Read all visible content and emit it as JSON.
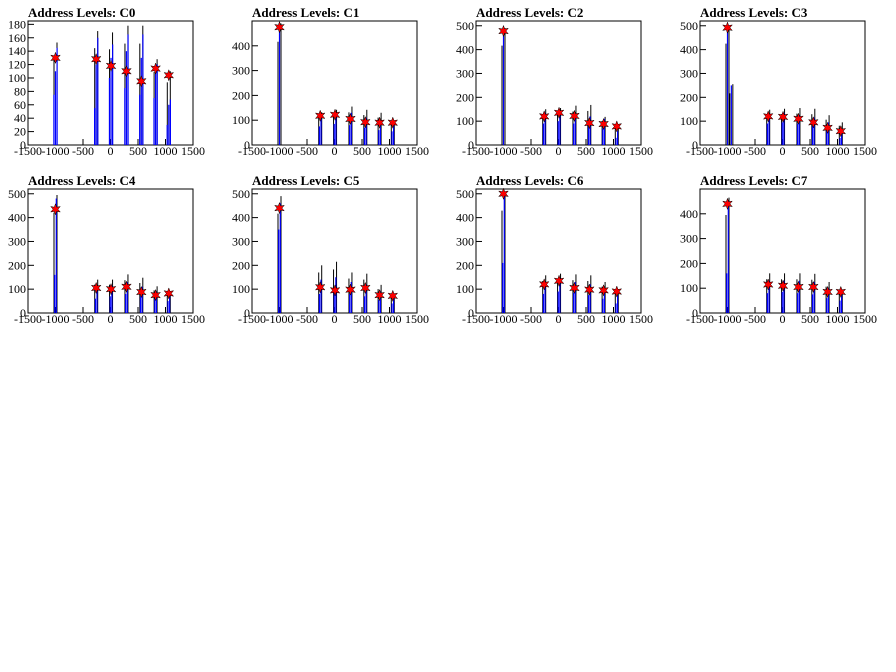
{
  "style": {
    "hist_color": "#0000ff",
    "spike_color": "#000000",
    "marker_color": "#ff0000",
    "marker_edge": "#000000",
    "axis_color": "#000000",
    "background": "#ffffff"
  },
  "chart_data": [
    {
      "type": "histogram",
      "title": "Address Levels: C0",
      "xlim": [
        -1500,
        1500
      ],
      "ylim": [
        0,
        185
      ],
      "xticks": [
        -1500,
        -1000,
        -500,
        0,
        500,
        1000,
        1500
      ],
      "yticks": [
        0,
        20,
        40,
        60,
        80,
        100,
        120,
        140,
        160,
        180
      ],
      "x_tick_labels": [
        "-1500",
        "-1000",
        "-500",
        "0",
        "500",
        "1000",
        "1500"
      ],
      "y_tick_labels": [
        "0",
        "20",
        "40",
        "60",
        "80",
        "100",
        "120",
        "140",
        "160",
        "180"
      ],
      "peaks": [
        {
          "x": -1000,
          "blue": [
            75,
            110,
            145
          ],
          "black": 153,
          "marker": 130
        },
        {
          "x": -260,
          "blue": [
            55,
            120,
            160
          ],
          "black": 170,
          "marker": 128
        },
        {
          "x": 10,
          "blue": [
            100,
            130,
            150
          ],
          "black": 168,
          "marker": 118
        },
        {
          "x": 290,
          "blue": [
            85,
            140,
            165
          ],
          "black": 178,
          "marker": 110
        },
        {
          "x": 560,
          "blue": [
            75,
            130,
            165
          ],
          "black": 178,
          "marker": 95
        },
        {
          "x": 820,
          "blue": [
            70,
            110,
            120
          ],
          "black": 128,
          "marker": 114
        },
        {
          "x": 1060,
          "blue": [
            30,
            60,
            68
          ],
          "black": 110,
          "marker": 104
        }
      ]
    },
    {
      "type": "histogram",
      "title": "Address Levels: C1",
      "xlim": [
        -1500,
        1500
      ],
      "ylim": [
        0,
        500
      ],
      "xticks": [
        -1500,
        -1000,
        -500,
        0,
        500,
        1000,
        1500
      ],
      "yticks": [
        0,
        100,
        200,
        300,
        400
      ],
      "x_tick_labels": [
        "-1500",
        "-1000",
        "-500",
        "0",
        "500",
        "1000",
        "1500"
      ],
      "y_tick_labels": [
        "0",
        "100",
        "200",
        "300",
        "400"
      ],
      "peaks": [
        {
          "x": -1000,
          "blue": [
            480
          ],
          "black": 490,
          "marker": 475
        },
        {
          "x": -260,
          "blue": [
            75,
            120
          ],
          "black": 132,
          "marker": 118
        },
        {
          "x": 10,
          "blue": [
            85,
            120
          ],
          "black": 142,
          "marker": 122
        },
        {
          "x": 290,
          "blue": [
            80,
            130
          ],
          "black": 155,
          "marker": 105
        },
        {
          "x": 560,
          "blue": [
            70,
            110
          ],
          "black": 142,
          "marker": 92
        },
        {
          "x": 820,
          "blue": [
            60,
            100
          ],
          "black": 130,
          "marker": 90
        },
        {
          "x": 1060,
          "blue": [
            55,
            90
          ],
          "black": 98,
          "marker": 90
        }
      ]
    },
    {
      "type": "histogram",
      "title": "Address Levels: C2",
      "xlim": [
        -1500,
        1500
      ],
      "ylim": [
        0,
        520
      ],
      "xticks": [
        -1500,
        -1000,
        -500,
        0,
        500,
        1000,
        1500
      ],
      "yticks": [
        0,
        100,
        200,
        300,
        400,
        500
      ],
      "x_tick_labels": [
        "-1500",
        "-1000",
        "-500",
        "0",
        "500",
        "1000",
        "1500"
      ],
      "y_tick_labels": [
        "0",
        "100",
        "200",
        "300",
        "400",
        "500"
      ],
      "peaks": [
        {
          "x": -1000,
          "blue": [
            480
          ],
          "black": 490,
          "marker": 478
        },
        {
          "x": -260,
          "blue": [
            90,
            135
          ],
          "black": 150,
          "marker": 120
        },
        {
          "x": 10,
          "blue": [
            100,
            140
          ],
          "black": 155,
          "marker": 135
        },
        {
          "x": 290,
          "blue": [
            90,
            130
          ],
          "black": 165,
          "marker": 122
        },
        {
          "x": 560,
          "blue": [
            80,
            120
          ],
          "black": 168,
          "marker": 92
        },
        {
          "x": 820,
          "blue": [
            70,
            110
          ],
          "black": 118,
          "marker": 88
        },
        {
          "x": 1060,
          "blue": [
            30,
            60
          ],
          "black": 82,
          "marker": 78
        }
      ]
    },
    {
      "type": "histogram",
      "title": "Address Levels: C3",
      "xlim": [
        -1500,
        1500
      ],
      "ylim": [
        0,
        520
      ],
      "xticks": [
        -1500,
        -1000,
        -500,
        0,
        500,
        1000,
        1500
      ],
      "yticks": [
        0,
        100,
        200,
        300,
        400,
        500
      ],
      "x_tick_labels": [
        "-1500",
        "-1000",
        "-500",
        "0",
        "500",
        "1000",
        "1500"
      ],
      "y_tick_labels": [
        "0",
        "100",
        "200",
        "300",
        "400",
        "500"
      ],
      "peaks": [
        {
          "x": -1000,
          "blue": [
            490
          ],
          "black": 500,
          "marker": 492
        },
        {
          "x": -930,
          "blue": [
            250
          ],
          "black": 255,
          "marker": null
        },
        {
          "x": -260,
          "blue": [
            90,
            130
          ],
          "black": 148,
          "marker": 120
        },
        {
          "x": 10,
          "blue": [
            95,
            135
          ],
          "black": 152,
          "marker": 118
        },
        {
          "x": 290,
          "blue": [
            90,
            125
          ],
          "black": 155,
          "marker": 110
        },
        {
          "x": 560,
          "blue": [
            80,
            115
          ],
          "black": 152,
          "marker": 95
        },
        {
          "x": 820,
          "blue": [
            60,
            95
          ],
          "black": 125,
          "marker": 72
        },
        {
          "x": 1060,
          "blue": [
            30,
            55
          ],
          "black": 95,
          "marker": 58
        }
      ]
    },
    {
      "type": "histogram",
      "title": "Address Levels: C4",
      "xlim": [
        -1500,
        1500
      ],
      "ylim": [
        0,
        520
      ],
      "xticks": [
        -1500,
        -1000,
        -500,
        0,
        500,
        1000,
        1500
      ],
      "yticks": [
        0,
        100,
        200,
        300,
        400,
        500
      ],
      "x_tick_labels": [
        "-1500",
        "-1000",
        "-500",
        "0",
        "500",
        "1000",
        "1500"
      ],
      "y_tick_labels": [
        "0",
        "100",
        "200",
        "300",
        "400",
        "500"
      ],
      "peaks": [
        {
          "x": -1000,
          "blue": [
            160,
            480
          ],
          "black": 495,
          "marker": 435
        },
        {
          "x": -260,
          "blue": [
            60,
            110
          ],
          "black": 140,
          "marker": 105
        },
        {
          "x": 10,
          "blue": [
            70,
            115
          ],
          "black": 140,
          "marker": 100
        },
        {
          "x": 290,
          "blue": [
            80,
            130
          ],
          "black": 162,
          "marker": 110
        },
        {
          "x": 560,
          "blue": [
            70,
            110
          ],
          "black": 148,
          "marker": 88
        },
        {
          "x": 820,
          "blue": [
            60,
            90
          ],
          "black": 112,
          "marker": 75
        },
        {
          "x": 1060,
          "blue": [
            50,
            80
          ],
          "black": 90,
          "marker": 82
        }
      ]
    },
    {
      "type": "histogram",
      "title": "Address Levels: C5",
      "xlim": [
        -1500,
        1500
      ],
      "ylim": [
        0,
        520
      ],
      "xticks": [
        -1500,
        -1000,
        -500,
        0,
        500,
        1000,
        1500
      ],
      "yticks": [
        0,
        100,
        200,
        300,
        400,
        500
      ],
      "x_tick_labels": [
        "-1500",
        "-1000",
        "-500",
        "0",
        "500",
        "1000",
        "1500"
      ],
      "y_tick_labels": [
        "0",
        "100",
        "200",
        "300",
        "400",
        "500"
      ],
      "peaks": [
        {
          "x": -1000,
          "blue": [
            350,
            460
          ],
          "black": 490,
          "marker": 440
        },
        {
          "x": -260,
          "blue": [
            80,
            140
          ],
          "black": 200,
          "marker": 108
        },
        {
          "x": 10,
          "blue": [
            90,
            150
          ],
          "black": 215,
          "marker": 95
        },
        {
          "x": 290,
          "blue": [
            80,
            130
          ],
          "black": 170,
          "marker": 98
        },
        {
          "x": 560,
          "blue": [
            70,
            120
          ],
          "black": 165,
          "marker": 105
        },
        {
          "x": 820,
          "blue": [
            55,
            90
          ],
          "black": 118,
          "marker": 75
        },
        {
          "x": 1060,
          "blue": [
            40,
            70
          ],
          "black": 82,
          "marker": 72
        }
      ]
    },
    {
      "type": "histogram",
      "title": "Address Levels: C6",
      "xlim": [
        -1500,
        1500
      ],
      "ylim": [
        0,
        520
      ],
      "xticks": [
        -1500,
        -1000,
        -500,
        0,
        500,
        1000,
        1500
      ],
      "yticks": [
        0,
        100,
        200,
        300,
        400,
        500
      ],
      "x_tick_labels": [
        "-1500",
        "-1000",
        "-500",
        "0",
        "500",
        "1000",
        "1500"
      ],
      "y_tick_labels": [
        "0",
        "100",
        "200",
        "300",
        "400",
        "500"
      ],
      "peaks": [
        {
          "x": -1000,
          "blue": [
            210,
            490
          ],
          "black": 505,
          "marker": 500
        },
        {
          "x": -260,
          "blue": [
            80,
            130
          ],
          "black": 158,
          "marker": 120
        },
        {
          "x": 10,
          "blue": [
            90,
            140
          ],
          "black": 165,
          "marker": 135
        },
        {
          "x": 290,
          "blue": [
            85,
            130
          ],
          "black": 162,
          "marker": 105
        },
        {
          "x": 560,
          "blue": [
            75,
            120
          ],
          "black": 158,
          "marker": 98
        },
        {
          "x": 820,
          "blue": [
            60,
            100
          ],
          "black": 130,
          "marker": 95
        },
        {
          "x": 1060,
          "blue": [
            40,
            75
          ],
          "black": 100,
          "marker": 90
        }
      ]
    },
    {
      "type": "histogram",
      "title": "Address Levels: C7",
      "xlim": [
        -1500,
        1500
      ],
      "ylim": [
        0,
        500
      ],
      "xticks": [
        -1500,
        -1000,
        -500,
        0,
        500,
        1000,
        1500
      ],
      "yticks": [
        0,
        100,
        200,
        300,
        400
      ],
      "x_tick_labels": [
        "-1500",
        "-1000",
        "-500",
        "0",
        "500",
        "1000",
        "1500"
      ],
      "y_tick_labels": [
        "0",
        "100",
        "200",
        "300",
        "400"
      ],
      "peaks": [
        {
          "x": -1000,
          "blue": [
            160,
            450
          ],
          "black": 465,
          "marker": 440
        },
        {
          "x": -260,
          "blue": [
            80,
            130
          ],
          "black": 160,
          "marker": 115
        },
        {
          "x": 10,
          "blue": [
            85,
            130
          ],
          "black": 160,
          "marker": 110
        },
        {
          "x": 290,
          "blue": [
            80,
            130
          ],
          "black": 160,
          "marker": 105
        },
        {
          "x": 560,
          "blue": [
            75,
            125
          ],
          "black": 158,
          "marker": 105
        },
        {
          "x": 820,
          "blue": [
            60,
            100
          ],
          "black": 125,
          "marker": 85
        },
        {
          "x": 1060,
          "blue": [
            50,
            85
          ],
          "black": 95,
          "marker": 85
        }
      ]
    }
  ]
}
